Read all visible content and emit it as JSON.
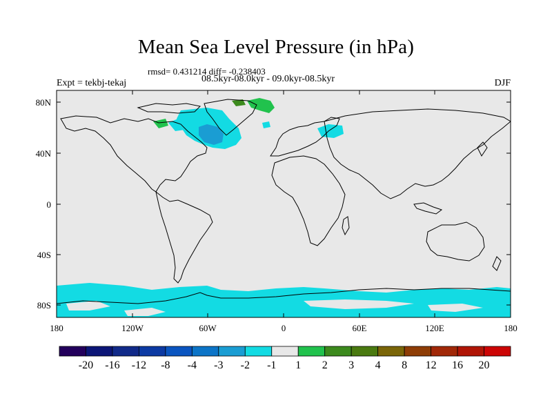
{
  "title": "Mean Sea Level Pressure (in hPa)",
  "stats_line": "rmsd= 0.431214 diff= -0.238403",
  "period_line": "08.5kyr-08.0kyr - 09.0kyr-08.5kyr",
  "experiment": "Expt = tekbj-tekaj",
  "season": "DJF",
  "latitude_ticks": [
    "80N",
    "40N",
    "0",
    "40S",
    "80S"
  ],
  "longitude_ticks": [
    "180",
    "120W",
    "60W",
    "0",
    "60E",
    "120E",
    "180"
  ],
  "colorbar": {
    "labels": [
      "-20",
      "-16",
      "-12",
      "-8",
      "-4",
      "-3",
      "-2",
      "-1",
      "1",
      "2",
      "3",
      "4",
      "8",
      "12",
      "16",
      "20"
    ],
    "colors": [
      "#23005c",
      "#0c1677",
      "#112a89",
      "#0c3aa3",
      "#0a55c0",
      "#0c74c7",
      "#1a9dd3",
      "#13dbe3",
      "#e8e8e8",
      "#21c24d",
      "#3c8a1d",
      "#4a7a10",
      "#7a6508",
      "#8e3d06",
      "#a12808",
      "#b01506",
      "#cc0505"
    ]
  },
  "colors": {
    "background_field": "#e8e8e8",
    "neg_1_to_2": "#13dbe3",
    "neg_2_to_3": "#1a9dd3",
    "pos_1_to_2": "#21c24d",
    "pos_2_to_3": "#3c8a1d"
  }
}
